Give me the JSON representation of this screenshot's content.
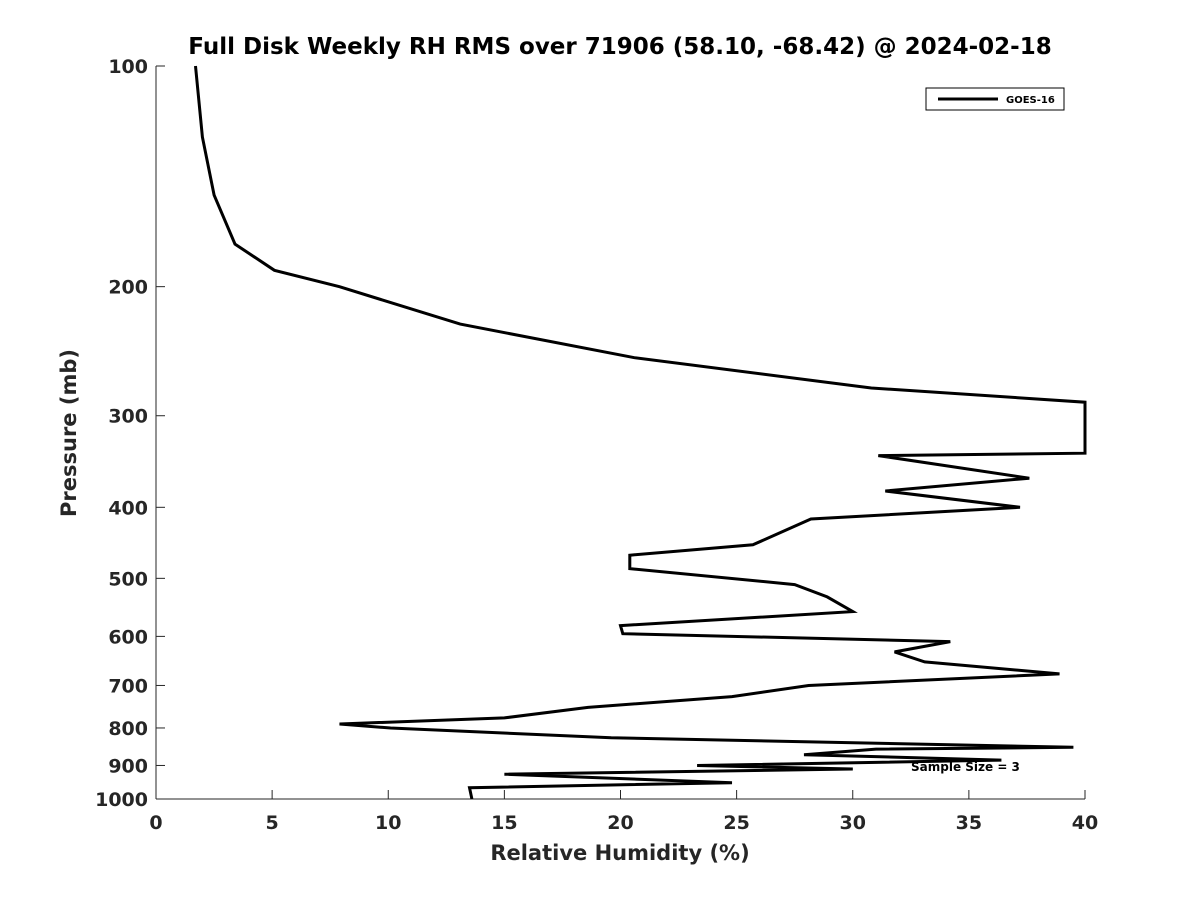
{
  "chart_data": {
    "type": "line",
    "title": "Full Disk Weekly RH RMS over 71906 (58.10, -68.42) @ 2024-02-18",
    "xlabel": "Relative Humidity (%)",
    "ylabel": "Pressure (mb)",
    "xlim": [
      0,
      40
    ],
    "ylim": [
      1000,
      100
    ],
    "yscale": "log",
    "y_reversed": true,
    "grid": false,
    "legend_position": "top-right",
    "x_ticks": [
      "0",
      "5",
      "10",
      "15",
      "20",
      "25",
      "30",
      "35",
      "40"
    ],
    "y_ticks": [
      "100",
      "200",
      "300",
      "400",
      "500",
      "600",
      "700",
      "800",
      "900",
      "1000"
    ],
    "series": [
      {
        "name": "GOES-16",
        "color": "#000000",
        "points": [
          [
            1.7,
            100
          ],
          [
            2.0,
            125
          ],
          [
            2.5,
            150
          ],
          [
            3.4,
            175
          ],
          [
            5.1,
            190
          ],
          [
            7.9,
            200
          ],
          [
            13.1,
            225
          ],
          [
            20.6,
            250
          ],
          [
            30.8,
            275
          ],
          [
            40.0,
            287.5
          ],
          [
            40.0,
            337.5
          ],
          [
            31.1,
            340
          ],
          [
            37.6,
            365
          ],
          [
            31.4,
            380
          ],
          [
            37.2,
            400
          ],
          [
            28.2,
            415
          ],
          [
            25.7,
            450
          ],
          [
            20.4,
            465
          ],
          [
            20.4,
            485
          ],
          [
            27.5,
            510
          ],
          [
            28.9,
            530
          ],
          [
            30.0,
            555
          ],
          [
            20.0,
            580
          ],
          [
            20.1,
            595
          ],
          [
            34.2,
            610
          ],
          [
            31.8,
            630
          ],
          [
            33.1,
            650
          ],
          [
            38.9,
            675
          ],
          [
            28.1,
            700
          ],
          [
            24.8,
            725
          ],
          [
            18.6,
            750
          ],
          [
            15.0,
            775
          ],
          [
            7.9,
            790
          ],
          [
            10.1,
            800
          ],
          [
            19.6,
            825
          ],
          [
            39.5,
            850
          ],
          [
            31.0,
            855
          ],
          [
            27.9,
            870
          ],
          [
            36.4,
            885
          ],
          [
            23.3,
            900
          ],
          [
            30.0,
            910
          ],
          [
            15.0,
            925
          ],
          [
            24.8,
            950
          ],
          [
            13.5,
            965
          ],
          [
            13.6,
            1000
          ]
        ]
      }
    ],
    "legend": [
      "GOES-16"
    ],
    "annotations": [
      "Sample Size = 3"
    ]
  }
}
